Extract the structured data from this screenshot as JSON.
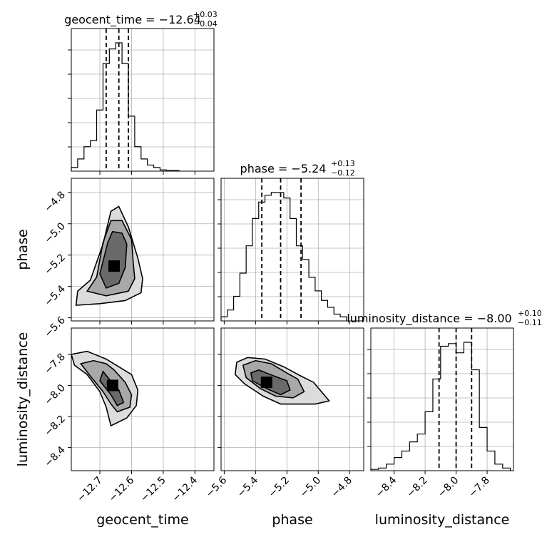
{
  "chart_data": {
    "type": "corner",
    "parameters": [
      {
        "name": "geocent_time",
        "axis_label": "geocent_time",
        "title": {
          "prefix": "geocent_time = ",
          "value": "−12.64",
          "plus": "+0.03",
          "minus": "−0.04"
        },
        "range": [
          -12.79,
          -12.34
        ],
        "ticks": [
          -12.7,
          -12.6,
          -12.5,
          -12.4
        ],
        "tick_labels": [
          "−12.7",
          "−12.6",
          "−12.5",
          "−12.4"
        ],
        "quantiles": [
          -12.68,
          -12.64,
          -12.61
        ],
        "hist_bins": [
          -12.79,
          -12.77,
          -12.75,
          -12.73,
          -12.71,
          -12.69,
          -12.67,
          -12.65,
          -12.63,
          -12.61,
          -12.59,
          -12.57,
          -12.55,
          -12.53,
          -12.51,
          -12.49,
          -12.47,
          -12.45
        ],
        "hist_counts": [
          3,
          10,
          20,
          25,
          50,
          88,
          100,
          105,
          88,
          45,
          20,
          10,
          5,
          3,
          1,
          0.5,
          0.5
        ]
      },
      {
        "name": "phase",
        "axis_label": "phase",
        "title": {
          "prefix": "phase = ",
          "value": "−5.24",
          "plus": "+0.13",
          "minus": "−0.12"
        },
        "range": [
          -5.62,
          -4.71
        ],
        "ticks": [
          -5.6,
          -5.4,
          -5.2,
          -5.0,
          -4.8
        ],
        "tick_labels": [
          "−5.6",
          "−5.4",
          "−5.2",
          "−5.0",
          "−4.8"
        ],
        "quantiles": [
          -5.36,
          -5.24,
          -5.11
        ],
        "hist_bins": [
          -5.62,
          -5.58,
          -5.54,
          -5.5,
          -5.46,
          -5.42,
          -5.38,
          -5.34,
          -5.3,
          -5.26,
          -5.22,
          -5.18,
          -5.14,
          -5.1,
          -5.06,
          -5.02,
          -4.98,
          -4.94,
          -4.9,
          -4.86,
          -4.82
        ],
        "hist_counts": [
          3,
          8,
          18,
          35,
          55,
          75,
          87,
          92,
          94,
          94,
          90,
          75,
          55,
          45,
          32,
          22,
          15,
          10,
          5,
          3
        ]
      },
      {
        "name": "luminosity_distance",
        "axis_label": "luminosity_distance",
        "title": {
          "prefix": "luminosity_distance = ",
          "value": "−8.00",
          "plus": "+0.10",
          "minus": "−0.11"
        },
        "range": [
          -8.55,
          -7.63
        ],
        "ticks": [
          -8.4,
          -8.2,
          -8.0,
          -7.8
        ],
        "tick_labels": [
          "−8.4",
          "−8.2",
          "−8.0",
          "−7.8"
        ],
        "quantiles": [
          -8.11,
          -8.0,
          -7.9
        ],
        "hist_bins": [
          -8.55,
          -8.5,
          -8.45,
          -8.4,
          -8.35,
          -8.3,
          -8.25,
          -8.2,
          -8.15,
          -8.1,
          -8.05,
          -8.0,
          -7.95,
          -7.9,
          -7.85,
          -7.8,
          -7.75,
          -7.7,
          -7.65
        ],
        "hist_counts": [
          1,
          2,
          5,
          10,
          15,
          22,
          28,
          45,
          70,
          95,
          97,
          90,
          98,
          77,
          33,
          15,
          5,
          2
        ]
      }
    ],
    "pair_panels": [
      {
        "x": "geocent_time",
        "y": "phase",
        "y_range": [
          -5.62,
          -4.71
        ],
        "y_ticks": [
          -5.6,
          -5.4,
          -5.2,
          -5.0,
          -4.8
        ],
        "y_tick_labels": [
          "−5.6",
          "−5.4",
          "−5.2",
          "−5.0",
          "−4.8"
        ],
        "center": [
          -12.655,
          -5.27
        ],
        "contours": [
          [
            [
              -12.68,
              -5.41
            ],
            [
              -12.7,
              -5.32
            ],
            [
              -12.675,
              -5.12
            ],
            [
              -12.66,
              -5.05
            ],
            [
              -12.63,
              -5.06
            ],
            [
              -12.615,
              -5.13
            ],
            [
              -12.62,
              -5.28
            ],
            [
              -12.64,
              -5.38
            ]
          ],
          [
            [
              -12.74,
              -5.43
            ],
            [
              -12.71,
              -5.34
            ],
            [
              -12.69,
              -5.12
            ],
            [
              -12.665,
              -4.98
            ],
            [
              -12.63,
              -4.98
            ],
            [
              -12.6,
              -5.1
            ],
            [
              -12.595,
              -5.24
            ],
            [
              -12.59,
              -5.35
            ],
            [
              -12.61,
              -5.43
            ],
            [
              -12.68,
              -5.46
            ]
          ],
          [
            [
              -12.775,
              -5.52
            ],
            [
              -12.77,
              -5.43
            ],
            [
              -12.73,
              -5.36
            ],
            [
              -12.69,
              -5.13
            ],
            [
              -12.665,
              -4.92
            ],
            [
              -12.64,
              -4.89
            ],
            [
              -12.61,
              -5.02
            ],
            [
              -12.58,
              -5.22
            ],
            [
              -12.565,
              -5.35
            ],
            [
              -12.57,
              -5.44
            ],
            [
              -12.62,
              -5.49
            ],
            [
              -12.7,
              -5.51
            ]
          ]
        ]
      },
      {
        "x": "geocent_time",
        "y": "luminosity_distance",
        "y_range": [
          -8.55,
          -7.63
        ],
        "y_ticks": [
          -8.4,
          -8.2,
          -8.0,
          -7.8
        ],
        "y_tick_labels": [
          "−8.4",
          "−8.2",
          "−8.0",
          "−7.8"
        ],
        "center": [
          -12.66,
          -8.0
        ],
        "contours": [
          [
            [
              -12.69,
              -7.91
            ],
            [
              -12.67,
              -7.96
            ],
            [
              -12.64,
              -8.03
            ],
            [
              -12.625,
              -8.11
            ],
            [
              -12.645,
              -8.13
            ],
            [
              -12.665,
              -8.06
            ],
            [
              -12.7,
              -7.97
            ]
          ],
          [
            [
              -12.76,
              -7.86
            ],
            [
              -12.72,
              -7.84
            ],
            [
              -12.68,
              -7.86
            ],
            [
              -12.655,
              -7.9
            ],
            [
              -12.62,
              -7.98
            ],
            [
              -12.6,
              -8.06
            ],
            [
              -12.605,
              -8.14
            ],
            [
              -12.645,
              -8.17
            ],
            [
              -12.665,
              -8.12
            ],
            [
              -12.69,
              -8.04
            ],
            [
              -12.73,
              -7.94
            ]
          ],
          [
            [
              -12.79,
              -7.8
            ],
            [
              -12.74,
              -7.78
            ],
            [
              -12.68,
              -7.83
            ],
            [
              -12.64,
              -7.88
            ],
            [
              -12.6,
              -7.93
            ],
            [
              -12.58,
              -8.03
            ],
            [
              -12.585,
              -8.13
            ],
            [
              -12.615,
              -8.21
            ],
            [
              -12.665,
              -8.26
            ],
            [
              -12.68,
              -8.14
            ],
            [
              -12.7,
              -8.04
            ],
            [
              -12.74,
              -7.93
            ],
            [
              -12.78,
              -7.87
            ]
          ]
        ]
      },
      {
        "x": "phase",
        "y": "luminosity_distance",
        "y_range": [
          -8.55,
          -7.63
        ],
        "y_ticks": [
          -8.4,
          -8.2,
          -8.0,
          -7.8
        ],
        "y_tick_labels": [
          "−8.4",
          "−8.2",
          "−8.0",
          "−7.8"
        ],
        "center": [
          -5.33,
          -7.98
        ],
        "contours": [
          [
            [
              -5.43,
              -7.92
            ],
            [
              -5.38,
              -7.9
            ],
            [
              -5.28,
              -7.94
            ],
            [
              -5.2,
              -7.97
            ],
            [
              -5.18,
              -8.03
            ],
            [
              -5.24,
              -8.06
            ],
            [
              -5.33,
              -8.02
            ],
            [
              -5.42,
              -7.97
            ]
          ],
          [
            [
              -5.48,
              -7.87
            ],
            [
              -5.4,
              -7.84
            ],
            [
              -5.3,
              -7.86
            ],
            [
              -5.2,
              -7.92
            ],
            [
              -5.13,
              -7.96
            ],
            [
              -5.09,
              -8.04
            ],
            [
              -5.16,
              -8.08
            ],
            [
              -5.27,
              -8.07
            ],
            [
              -5.37,
              -8.02
            ],
            [
              -5.46,
              -7.95
            ]
          ],
          [
            [
              -5.52,
              -7.85
            ],
            [
              -5.45,
              -7.82
            ],
            [
              -5.34,
              -7.83
            ],
            [
              -5.22,
              -7.88
            ],
            [
              -5.11,
              -7.94
            ],
            [
              -5.03,
              -7.98
            ],
            [
              -4.93,
              -8.1
            ],
            [
              -5.02,
              -8.12
            ],
            [
              -5.12,
              -8.12
            ],
            [
              -5.24,
              -8.12
            ],
            [
              -5.35,
              -8.07
            ],
            [
              -5.47,
              -7.99
            ],
            [
              -5.53,
              -7.93
            ]
          ]
        ]
      }
    ],
    "grid": true
  }
}
